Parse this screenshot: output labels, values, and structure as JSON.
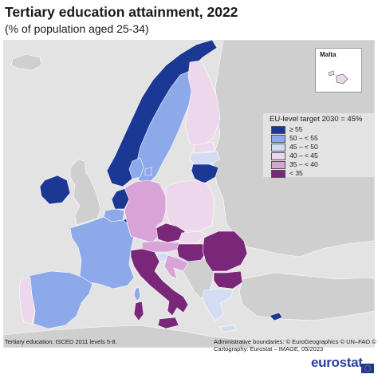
{
  "header": {
    "title": "Tertiary education attainment, 2022",
    "subtitle": "(% of population aged 25-34)"
  },
  "inset": {
    "label": "Malta"
  },
  "legend": {
    "title": "EU-level target 2030 = 45%",
    "classes": [
      {
        "label": "≥ 55",
        "color": "#1c3895"
      },
      {
        "label": "50 – < 55",
        "color": "#8ea9ea"
      },
      {
        "label": "45 – < 50",
        "color": "#d3dcf2"
      },
      {
        "label": "40 – < 45",
        "color": "#ecd7ec"
      },
      {
        "label": "35 – < 40",
        "color": "#d8a4d8"
      },
      {
        "label": "< 35",
        "color": "#7b2779"
      }
    ]
  },
  "map_data": {
    "non_eu_color": "#cfcfcf",
    "sea_color": "#e3e3e3",
    "countries": [
      {
        "name": "Ireland",
        "class": "≥ 55"
      },
      {
        "name": "Luxembourg",
        "class": "≥ 55"
      },
      {
        "name": "Cyprus",
        "class": "≥ 55"
      },
      {
        "name": "Lithuania",
        "class": "≥ 55"
      },
      {
        "name": "Netherlands",
        "class": "≥ 55"
      },
      {
        "name": "Norway",
        "class": "≥ 55"
      },
      {
        "name": "Sweden",
        "class": "50 – < 55"
      },
      {
        "name": "Belgium",
        "class": "50 – < 55"
      },
      {
        "name": "France",
        "class": "50 – < 55"
      },
      {
        "name": "Spain",
        "class": "50 – < 55"
      },
      {
        "name": "Denmark",
        "class": "50 – < 55"
      },
      {
        "name": "Latvia",
        "class": "45 – < 50"
      },
      {
        "name": "Slovenia",
        "class": "45 – < 50"
      },
      {
        "name": "Greece",
        "class": "45 – < 50"
      },
      {
        "name": "Estonia",
        "class": "40 – < 45"
      },
      {
        "name": "Poland",
        "class": "40 – < 45"
      },
      {
        "name": "Finland",
        "class": "40 – < 45"
      },
      {
        "name": "Portugal",
        "class": "40 – < 45"
      },
      {
        "name": "Malta",
        "class": "40 – < 45"
      },
      {
        "name": "Slovakia",
        "class": "40 – < 45"
      },
      {
        "name": "Germany",
        "class": "35 – < 40"
      },
      {
        "name": "Austria",
        "class": "35 – < 40"
      },
      {
        "name": "Croatia",
        "class": "35 – < 40"
      },
      {
        "name": "Czechia",
        "class": "< 35"
      },
      {
        "name": "Hungary",
        "class": "< 35"
      },
      {
        "name": "Romania",
        "class": "< 35"
      },
      {
        "name": "Italy",
        "class": "< 35"
      },
      {
        "name": "Bulgaria",
        "class": "< 35"
      }
    ]
  },
  "footer": {
    "note": "Tertiary education: ISCED 2011 levels 5-8.",
    "credit_line1": "Administrative boundaries: © EuroGeographics © UN–FAO © Turkstat",
    "credit_line2": "Cartography: Eurostat – IMAGE, 05/2023",
    "logo": "eurostat"
  }
}
